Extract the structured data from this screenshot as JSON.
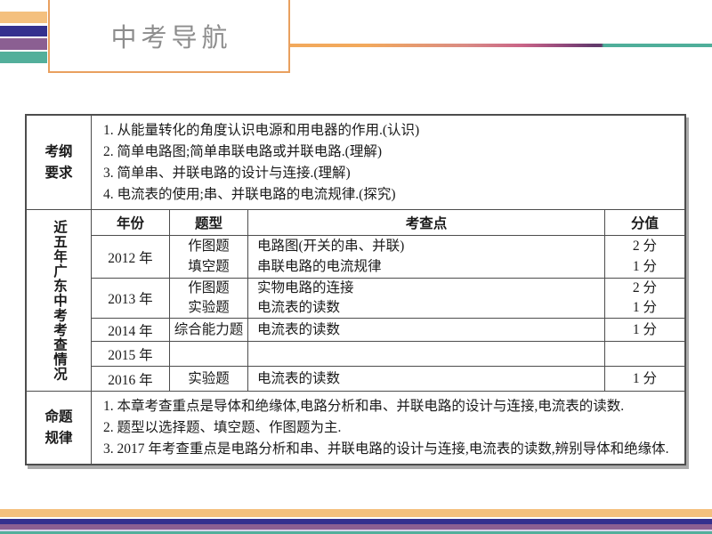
{
  "title": {
    "text": "中考导航"
  },
  "palette": {
    "orange": "#F4C07E",
    "indigo": "#34308E",
    "purple": "#8B5F92",
    "teal": "#53AF9B",
    "lavender": "#D8D2EA",
    "boxborder": "#E9A05F",
    "titlegray": "#8D8D8D",
    "lorange": "#F2A95C",
    "lpink": "#C96487",
    "lpurple": "#633A6B",
    "lteal": "#4FAE9A",
    "border": "#4D4D4D",
    "shadow": "#ABABAB",
    "text": "#1A1A1A"
  },
  "table": {
    "sections": [
      {
        "header_lines": [
          "考纲",
          "要求"
        ],
        "items": [
          "1. 从能量转化的角度认识电源和用电器的作用.(认识)",
          "2. 简单电路图;简单串联电路或并联电路.(理解)",
          "3. 简单串、并联电路的设计与连接.(理解)",
          "4. 电流表的使用;串、并联电路的电流规律.(探究)"
        ]
      },
      {
        "header_vertical": "近五年广东中考考查情况",
        "columns": [
          "年份",
          "题型",
          "考查点",
          "分值"
        ],
        "rows": [
          {
            "year": "2012 年",
            "types": [
              "作图题",
              "填空题"
            ],
            "points": [
              "电路图(开关的串、并联)",
              "串联电路的电流规律"
            ],
            "scores": [
              "2 分",
              "1 分"
            ]
          },
          {
            "year": "2013 年",
            "types": [
              "作图题",
              "实验题"
            ],
            "points": [
              "实物电路的连接",
              "电流表的读数"
            ],
            "scores": [
              "2 分",
              "1 分"
            ]
          },
          {
            "year": "2014 年",
            "types": [
              "综合能力题"
            ],
            "points": [
              "电流表的读数"
            ],
            "scores": [
              "1 分"
            ]
          },
          {
            "year": "2015 年",
            "types": [],
            "points": [],
            "scores": []
          },
          {
            "year": "2016 年",
            "types": [
              "实验题"
            ],
            "points": [
              "电流表的读数"
            ],
            "scores": [
              "1 分"
            ]
          }
        ]
      },
      {
        "header_lines": [
          "命题",
          "规律"
        ],
        "items": [
          "1. 本章考查重点是导体和绝缘体,电路分析和串、并联电路的设计与连接,电流表的读数.",
          "2. 题型以选择题、填空题、作图题为主.",
          "3. 2017 年考查重点是电路分析和串、并联电路的设计与连接,电流表的读数,辨别导体和绝缘体."
        ]
      }
    ]
  }
}
